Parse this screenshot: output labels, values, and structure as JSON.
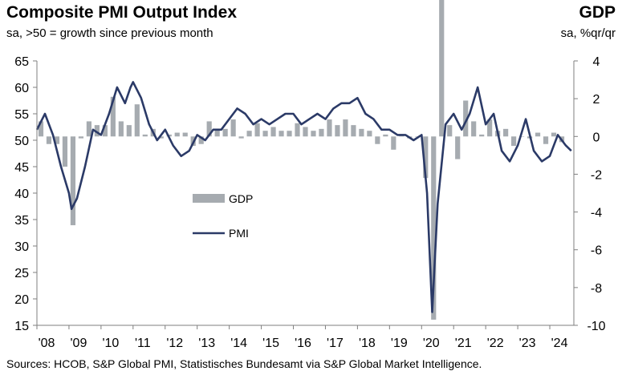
{
  "header": {
    "title": "Composite PMI Output Index",
    "subtitle": "sa, >50 = growth since previous month",
    "right_title": "GDP",
    "right_subtitle": "sa, %qr/qr"
  },
  "footer": {
    "source": "Sources: HCOB, S&P Global PMI, Statistisches Bundesamt via S&P Global Market Intelligence."
  },
  "colors": {
    "pmi_line": "#2b3a67",
    "gdp_bar": "#a6abb0",
    "axis": "#7f7f7f"
  },
  "chart_data": {
    "type": "bar+line",
    "x_axis": {
      "labels": [
        "'08",
        "'09",
        "'10",
        "'11",
        "'12",
        "'13",
        "'14",
        "'15",
        "'16",
        "'17",
        "'18",
        "'19",
        "'20",
        "'21",
        "'22",
        "'23",
        "'24"
      ],
      "range": [
        2008.0,
        2024.75
      ]
    },
    "y_left": {
      "range": [
        15,
        65
      ],
      "ticks": [
        15,
        20,
        25,
        30,
        35,
        40,
        45,
        50,
        55,
        60,
        65
      ]
    },
    "y_right": {
      "range": [
        -10,
        4
      ],
      "ticks": [
        -10,
        -8,
        -6,
        -4,
        -2,
        0,
        2,
        4
      ]
    },
    "legend": [
      {
        "name": "GDP"
      },
      {
        "name": "PMI"
      }
    ],
    "gdp": {
      "name": "GDP",
      "axis": "right",
      "x": [
        2008.0,
        2008.25,
        2008.5,
        2008.75,
        2009.0,
        2009.25,
        2009.5,
        2009.75,
        2010.0,
        2010.25,
        2010.5,
        2010.75,
        2011.0,
        2011.25,
        2011.5,
        2011.75,
        2012.0,
        2012.25,
        2012.5,
        2012.75,
        2013.0,
        2013.25,
        2013.5,
        2013.75,
        2014.0,
        2014.25,
        2014.5,
        2014.75,
        2015.0,
        2015.25,
        2015.5,
        2015.75,
        2016.0,
        2016.25,
        2016.5,
        2016.75,
        2017.0,
        2017.25,
        2017.5,
        2017.75,
        2018.0,
        2018.25,
        2018.5,
        2018.75,
        2019.0,
        2019.25,
        2019.5,
        2019.75,
        2020.0,
        2020.25,
        2020.5,
        2020.75,
        2021.0,
        2021.25,
        2021.5,
        2021.75,
        2022.0,
        2022.25,
        2022.5,
        2022.75,
        2023.0,
        2023.25,
        2023.5,
        2023.75,
        2024.0,
        2024.25
      ],
      "values": [
        0.8,
        -0.4,
        -0.4,
        -1.6,
        -4.7,
        -0.1,
        0.8,
        0.6,
        0.6,
        2.1,
        0.8,
        0.6,
        1.7,
        0.1,
        0.4,
        -0.1,
        0.1,
        0.2,
        0.2,
        -0.5,
        -0.4,
        0.8,
        0.4,
        0.4,
        0.9,
        -0.1,
        0.3,
        0.7,
        0.3,
        0.5,
        0.3,
        0.3,
        0.7,
        0.5,
        0.3,
        0.4,
        0.9,
        0.6,
        0.9,
        0.6,
        0.4,
        0.3,
        -0.4,
        0.1,
        -0.7,
        0.1,
        -0.1,
        0.0,
        -2.2,
        -9.7,
        8.3,
        0.6,
        -1.2,
        1.9,
        0.8,
        0.1,
        0.9,
        0.3,
        0.4,
        -0.5,
        0.0,
        -0.1,
        0.2,
        -0.4,
        0.2,
        -0.3
      ]
    },
    "pmi": {
      "name": "PMI",
      "axis": "left",
      "x": [
        2008.0,
        2008.25,
        2008.5,
        2008.75,
        2009.0,
        2009.08,
        2009.25,
        2009.5,
        2009.75,
        2010.0,
        2010.25,
        2010.5,
        2010.75,
        2010.92,
        2011.0,
        2011.25,
        2011.5,
        2011.75,
        2012.0,
        2012.25,
        2012.5,
        2012.75,
        2013.0,
        2013.25,
        2013.5,
        2013.75,
        2014.0,
        2014.25,
        2014.5,
        2014.75,
        2015.0,
        2015.25,
        2015.5,
        2015.75,
        2016.0,
        2016.25,
        2016.5,
        2016.75,
        2017.0,
        2017.25,
        2017.5,
        2017.75,
        2018.0,
        2018.25,
        2018.5,
        2018.75,
        2019.0,
        2019.25,
        2019.5,
        2019.75,
        2020.0,
        2020.17,
        2020.33,
        2020.5,
        2020.75,
        2021.0,
        2021.25,
        2021.5,
        2021.75,
        2022.0,
        2022.25,
        2022.5,
        2022.75,
        2023.0,
        2023.25,
        2023.5,
        2023.75,
        2024.0,
        2024.25,
        2024.5,
        2024.67
      ],
      "values": [
        52,
        55,
        51,
        45,
        40,
        37,
        39,
        45,
        52,
        51,
        55,
        60,
        57,
        60,
        61,
        58,
        53,
        50,
        52,
        49,
        47,
        48,
        51,
        50,
        52,
        52,
        54,
        56,
        55,
        53,
        54,
        53,
        54,
        55,
        55,
        53,
        54,
        55,
        54,
        56,
        57,
        57,
        58,
        55,
        54,
        52,
        52,
        51,
        51,
        50,
        51,
        40,
        17.5,
        38,
        53,
        55,
        52,
        55,
        60,
        53,
        55,
        48,
        46,
        49,
        54,
        48,
        46,
        47,
        51,
        49,
        48
      ]
    }
  }
}
